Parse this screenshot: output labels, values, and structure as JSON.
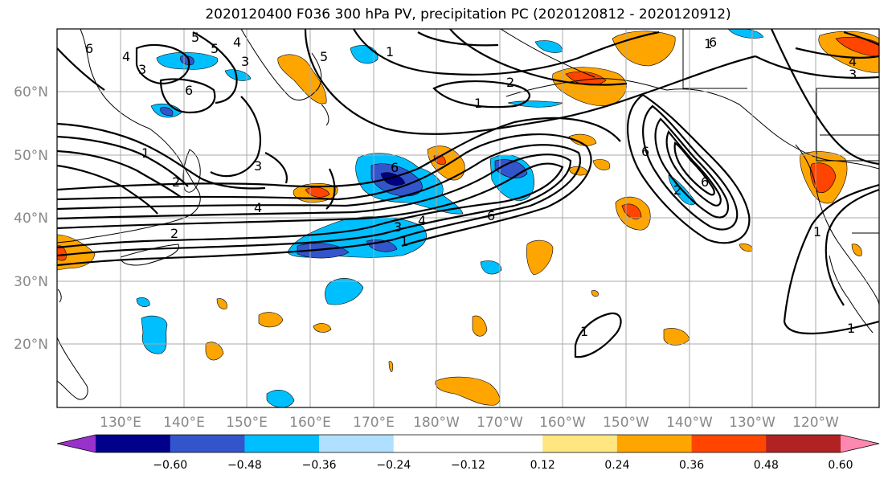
{
  "title": "2020120400 F036 300 hPa PV, precipitation PC (2020120812 - 2020120912)",
  "map": {
    "lat_labels": [
      "60°N",
      "50°N",
      "40°N",
      "30°N",
      "20°N"
    ],
    "lon_labels": [
      "130°E",
      "140°E",
      "150°E",
      "160°E",
      "170°E",
      "180°W",
      "170°W",
      "160°W",
      "150°W",
      "140°W",
      "130°W",
      "120°W"
    ],
    "contour_labels": [
      "6",
      "4",
      "3",
      "5",
      "6",
      "5",
      "4",
      "1",
      "2",
      "1",
      "5",
      "1",
      "6",
      "1",
      "3",
      "2",
      "3",
      "6",
      "4",
      "4",
      "3",
      "1",
      "6",
      "6",
      "6",
      "2",
      "1",
      "1",
      "1",
      "4",
      "3",
      "2"
    ],
    "fill_colors": {
      "neg_strong": "#000080",
      "neg_mid": "#3355cc",
      "neg": "#00bfff",
      "pos": "#ffa500",
      "pos_mid": "#ff4500",
      "pos_strong": "#b22222"
    }
  },
  "colorbar": {
    "colors": [
      "#9932cc",
      "#00008b",
      "#3355cc",
      "#00bfff",
      "#b0e0ff",
      "#ffffff",
      "#ffffff",
      "#ffe680",
      "#ffa500",
      "#ff4500",
      "#b22222",
      "#ff88b0"
    ],
    "labels": [
      "−0.60",
      "−0.48",
      "−0.36",
      "−0.24",
      "−0.12",
      "0.12",
      "0.24",
      "0.36",
      "0.48",
      "0.60"
    ]
  }
}
